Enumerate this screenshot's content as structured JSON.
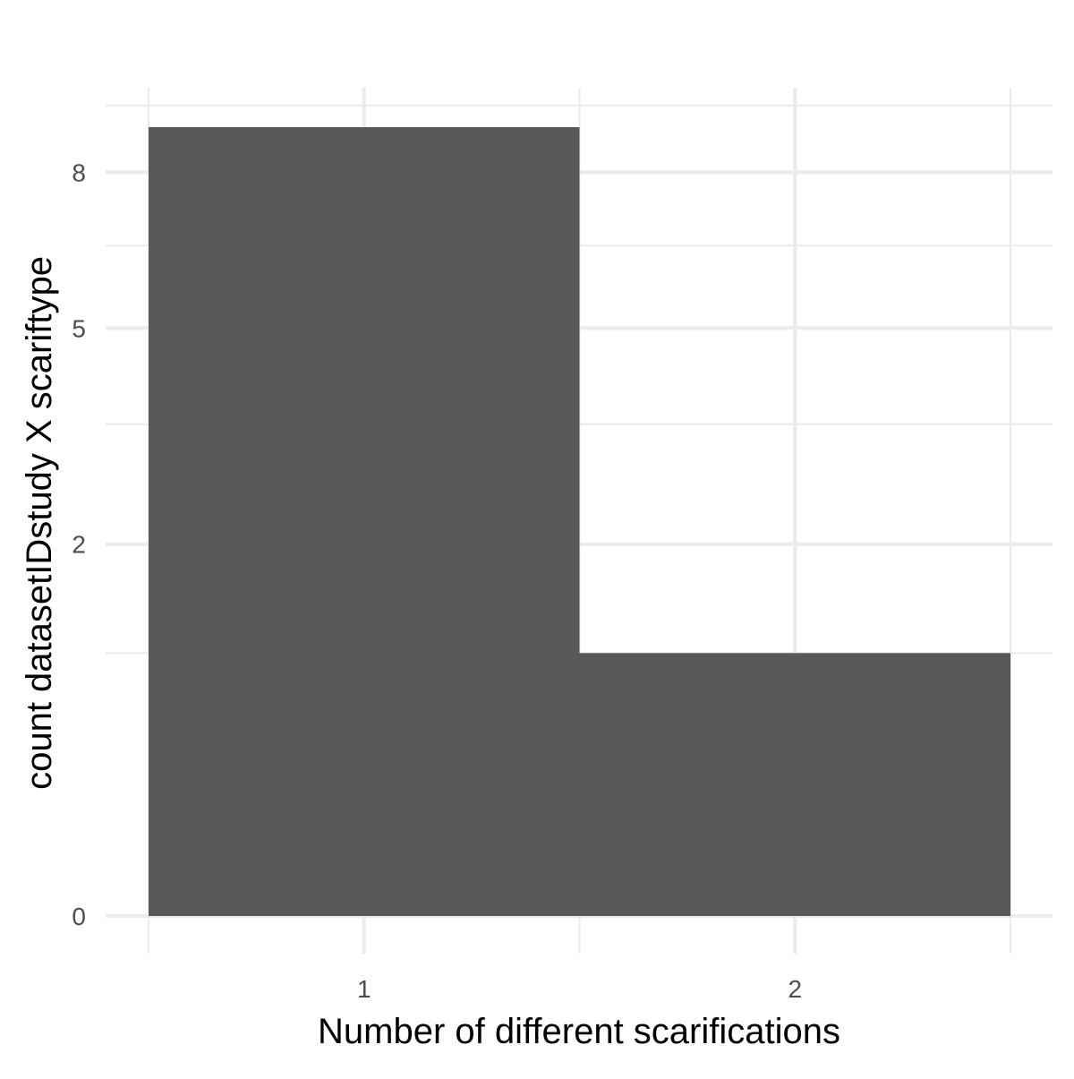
{
  "chart_data": {
    "type": "bar",
    "categories": [
      "1",
      "2"
    ],
    "values": [
      9.0,
      1.0
    ],
    "title": "",
    "xlabel": "Number of different scarifications",
    "ylabel": "count datasetIDstudy X scariftype",
    "ylim": [
      0,
      9.0
    ],
    "y_ticks": [
      "0",
      "2",
      "5",
      "8"
    ],
    "y_scale": "sqrt",
    "grid": true,
    "legend": "none",
    "bar_color": "#595959",
    "grid_color": "#ebebeb"
  }
}
